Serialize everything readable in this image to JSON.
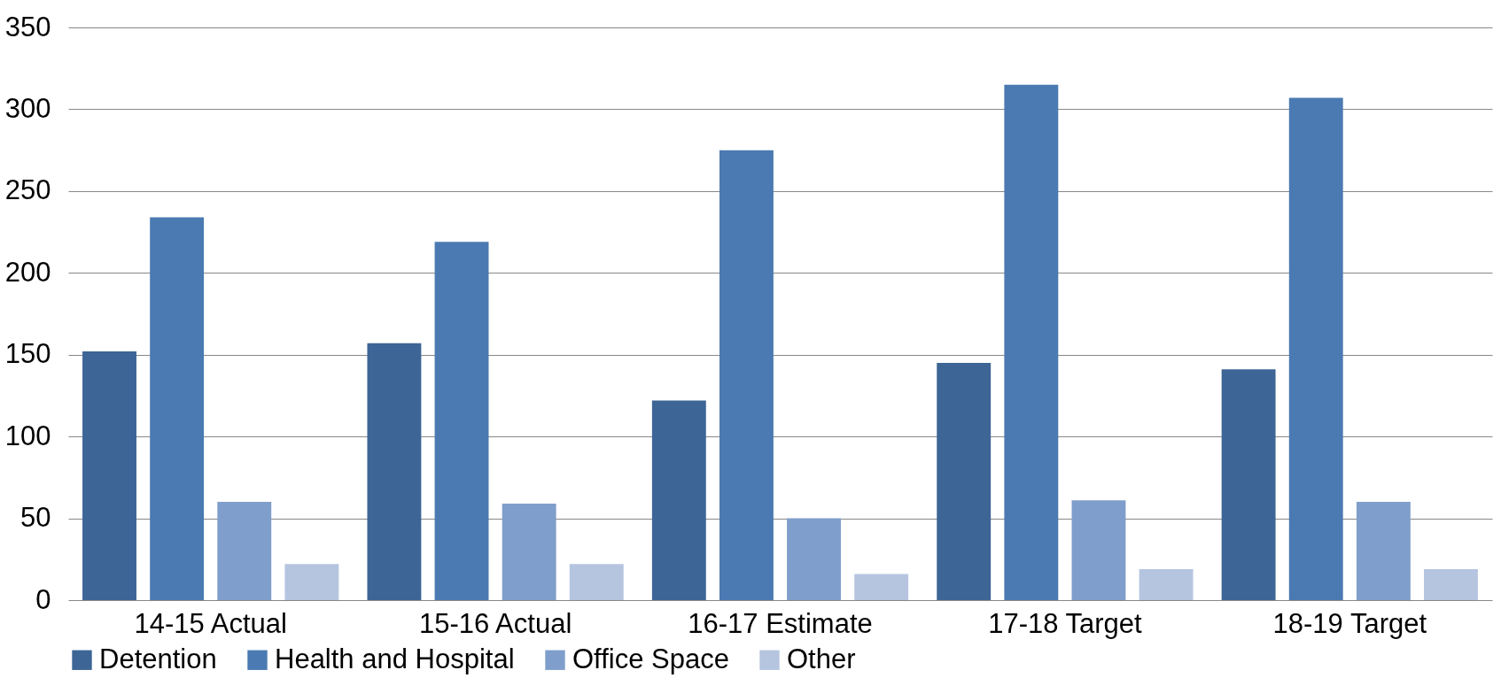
{
  "chart_data": {
    "type": "bar",
    "categories": [
      "14-15 Actual",
      "15-16 Actual",
      "16-17 Estimate",
      "17-18 Target",
      "18-19 Target"
    ],
    "series": [
      {
        "name": "Detention",
        "color": "#3d6595",
        "values": [
          152,
          157,
          122,
          145,
          141
        ]
      },
      {
        "name": "Health and Hospital",
        "color": "#4a7ab1",
        "values": [
          234,
          219,
          275,
          315,
          307
        ]
      },
      {
        "name": "Office Space",
        "color": "#7f9ecb",
        "values": [
          60,
          59,
          50,
          61,
          60
        ]
      },
      {
        "name": "Other",
        "color": "#b5c5e0",
        "values": [
          22,
          22,
          16,
          19,
          19
        ]
      }
    ],
    "ylim": [
      0,
      350
    ],
    "yticks": [
      0,
      50,
      100,
      150,
      200,
      250,
      300,
      350
    ],
    "grid": "y",
    "legend": "bottom"
  }
}
